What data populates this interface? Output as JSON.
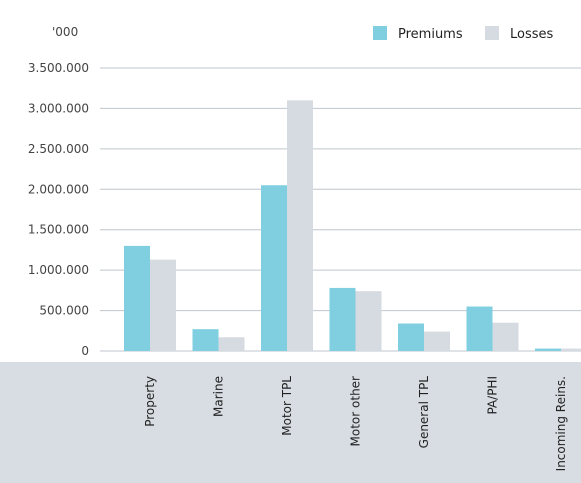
{
  "chart_data": {
    "type": "bar",
    "unit_label": "'000",
    "categories": [
      "Property",
      "Marine",
      "Motor TPL",
      "Motor other",
      "General TPL",
      "PA/PHI",
      "Incoming Reins."
    ],
    "series": [
      {
        "name": "Premiums",
        "color": "#7fcfe0",
        "values": [
          1300000,
          270000,
          2050000,
          780000,
          340000,
          550000,
          30000
        ]
      },
      {
        "name": "Losses",
        "color": "#d5dbe0",
        "values": [
          1130000,
          170000,
          3100000,
          740000,
          240000,
          350000,
          30000
        ]
      }
    ],
    "y_ticks": [
      "0",
      "500.000",
      "1.000.000",
      "1.500.000",
      "2.000.000",
      "2.500.000",
      "3.000.000",
      "3.500.000"
    ],
    "ylim": [
      0,
      3500000
    ],
    "grid": true,
    "legend_position": "top-right"
  }
}
